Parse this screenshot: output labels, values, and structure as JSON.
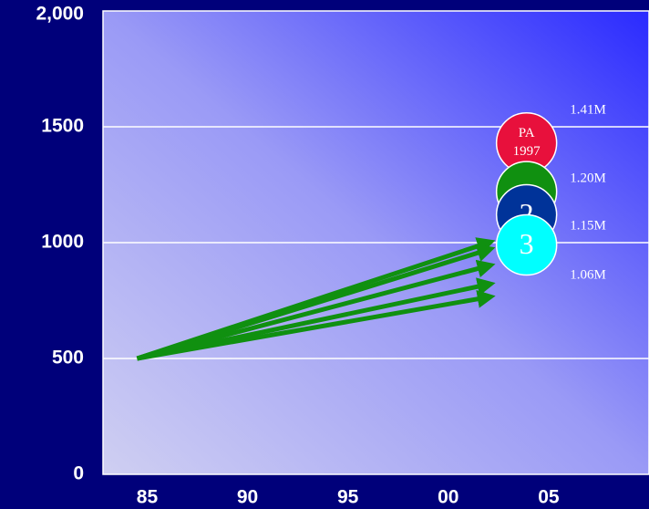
{
  "chart_data": {
    "type": "line",
    "ylim": [
      0,
      2000
    ],
    "yticks": [
      0,
      500,
      1000,
      1500,
      {
        "value": 2000,
        "label": "2,000"
      }
    ],
    "xlim": [
      1982.8,
      2010
    ],
    "xticks": [
      {
        "value": 1985,
        "label": "85"
      },
      {
        "value": 1990,
        "label": "90"
      },
      {
        "value": 1995,
        "label": "95"
      },
      {
        "value": 2000,
        "label": "00"
      },
      {
        "value": 2005,
        "label": "05"
      }
    ],
    "grid": true,
    "arrows": true,
    "x": [
      1984.5,
      2002
    ],
    "series": [
      {
        "color": "#109010",
        "values": [
          500,
          1000
        ]
      },
      {
        "color": "#109010",
        "values": [
          500,
          970
        ]
      },
      {
        "color": "#109010",
        "values": [
          500,
          900
        ]
      },
      {
        "color": "#109010",
        "values": [
          500,
          820
        ]
      },
      {
        "color": "#109010",
        "values": [
          500,
          765
        ]
      }
    ],
    "points": {
      "x": [
        2003.9,
        2003.9,
        2003.9,
        2003.9
      ],
      "values": [
        1430,
        1220,
        1120,
        990
      ],
      "colors": [
        "#e8103c",
        "#109010",
        "#003399",
        "#00ffff"
      ],
      "labels": [
        [
          "PA",
          "1997"
        ],
        null,
        [
          "2"
        ],
        [
          "3"
        ]
      ]
    },
    "annotations": [
      "1.41M",
      "1.20M",
      "1.15M",
      "1.06M"
    ]
  }
}
